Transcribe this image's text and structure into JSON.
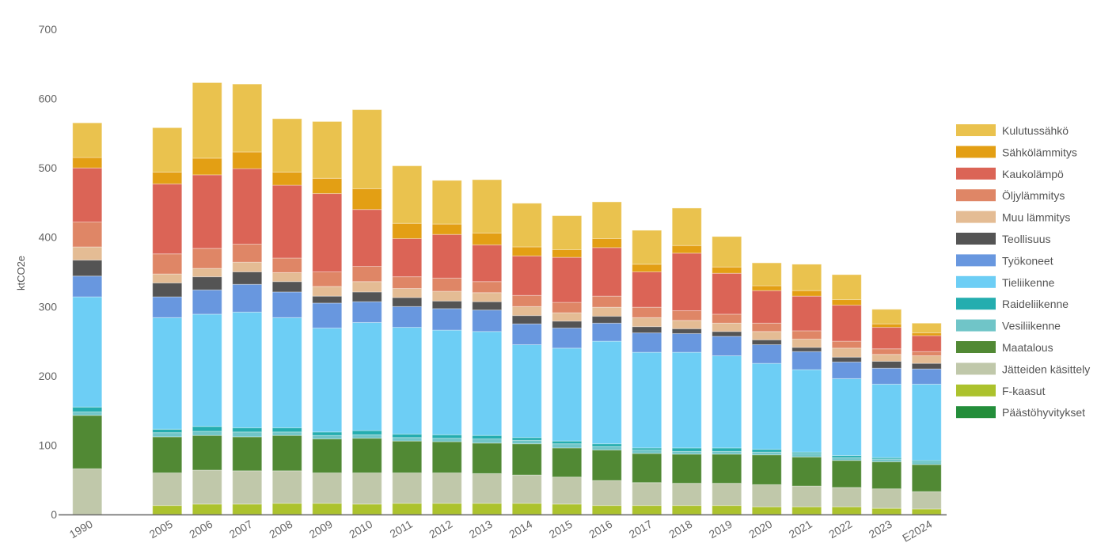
{
  "chart_data": {
    "type": "bar",
    "stacked": true,
    "title": "",
    "xlabel": "",
    "ylabel": "ktCO2e",
    "ylim": [
      0,
      700
    ],
    "yticks": [
      0,
      100,
      200,
      300,
      400,
      500,
      600,
      700
    ],
    "grid": false,
    "legend_position": "right",
    "categories": [
      "1990",
      "2005",
      "2006",
      "2007",
      "2008",
      "2009",
      "2010",
      "2011",
      "2012",
      "2013",
      "2014",
      "2015",
      "2016",
      "2017",
      "2018",
      "2019",
      "2020",
      "2021",
      "2022",
      "2023",
      "E2024"
    ],
    "series": [
      {
        "name": "Päästöhyvitykset",
        "color": "#238E3A",
        "values": [
          0,
          0,
          0,
          0,
          0,
          0,
          0,
          0,
          0,
          0,
          0,
          0,
          0,
          0,
          0,
          0,
          0,
          0,
          0,
          0,
          0
        ]
      },
      {
        "name": "F-kaasut",
        "color": "#ACC22D",
        "values": [
          0,
          13,
          15,
          15,
          16,
          16,
          15,
          16,
          16,
          16,
          16,
          15,
          13,
          13,
          13,
          13,
          11,
          11,
          11,
          9,
          8
        ]
      },
      {
        "name": "Jätteiden käsittely",
        "color": "#C0C8AA",
        "values": [
          66,
          47,
          49,
          48,
          47,
          44,
          45,
          44,
          44,
          43,
          41,
          39,
          36,
          33,
          32,
          32,
          32,
          30,
          28,
          28,
          25
        ]
      },
      {
        "name": "Maatalous",
        "color": "#518934",
        "values": [
          77,
          52,
          50,
          49,
          51,
          49,
          50,
          46,
          45,
          44,
          45,
          42,
          44,
          42,
          42,
          42,
          43,
          42,
          39,
          39,
          39
        ]
      },
      {
        "name": "Vesiliikenne",
        "color": "#70C5C8",
        "values": [
          5,
          6,
          6,
          7,
          5,
          5,
          5,
          5,
          5,
          6,
          5,
          6,
          5,
          5,
          4,
          4,
          4,
          5,
          4,
          4,
          4
        ]
      },
      {
        "name": "Raideliikenne",
        "color": "#24ADAF",
        "values": [
          7,
          5,
          7,
          6,
          6,
          5,
          6,
          5,
          5,
          5,
          4,
          4,
          4,
          3,
          5,
          5,
          4,
          2,
          3,
          2,
          2
        ]
      },
      {
        "name": "Tieliikenne",
        "color": "#6DCEF5",
        "values": [
          159,
          161,
          162,
          167,
          159,
          150,
          156,
          154,
          151,
          150,
          134,
          134,
          148,
          138,
          138,
          133,
          124,
          119,
          111,
          106,
          110
        ]
      },
      {
        "name": "Työkoneet",
        "color": "#6897DF",
        "values": [
          30,
          30,
          35,
          40,
          37,
          36,
          30,
          30,
          31,
          31,
          30,
          29,
          26,
          28,
          27,
          28,
          27,
          26,
          24,
          23,
          22
        ]
      },
      {
        "name": "Teollisuus",
        "color": "#545454",
        "values": [
          23,
          20,
          19,
          18,
          15,
          10,
          14,
          13,
          11,
          12,
          12,
          10,
          10,
          9,
          7,
          7,
          7,
          6,
          7,
          10,
          8
        ]
      },
      {
        "name": "Muu lämmitys",
        "color": "#E4BC94",
        "values": [
          19,
          13,
          12,
          14,
          13,
          14,
          15,
          13,
          14,
          13,
          13,
          12,
          13,
          13,
          12,
          12,
          12,
          12,
          13,
          10,
          11
        ]
      },
      {
        "name": "Öljylämmitys",
        "color": "#DF8666",
        "values": [
          36,
          29,
          29,
          26,
          21,
          21,
          22,
          17,
          19,
          16,
          16,
          15,
          16,
          15,
          14,
          13,
          12,
          12,
          10,
          8,
          6
        ]
      },
      {
        "name": "Kaukolämpö",
        "color": "#DB6456",
        "values": [
          78,
          101,
          106,
          109,
          105,
          113,
          82,
          55,
          63,
          53,
          57,
          65,
          70,
          51,
          83,
          59,
          47,
          50,
          52,
          31,
          23
        ]
      },
      {
        "name": "Sähkölämmitys",
        "color": "#E39F14",
        "values": [
          15,
          17,
          24,
          24,
          19,
          22,
          30,
          22,
          15,
          17,
          13,
          11,
          13,
          11,
          11,
          9,
          7,
          8,
          8,
          5,
          4
        ]
      },
      {
        "name": "Kulutussähkö",
        "color": "#EAC24E",
        "values": [
          50,
          64,
          109,
          98,
          77,
          82,
          114,
          83,
          63,
          77,
          63,
          49,
          53,
          49,
          54,
          44,
          33,
          38,
          36,
          21,
          14
        ]
      }
    ]
  }
}
